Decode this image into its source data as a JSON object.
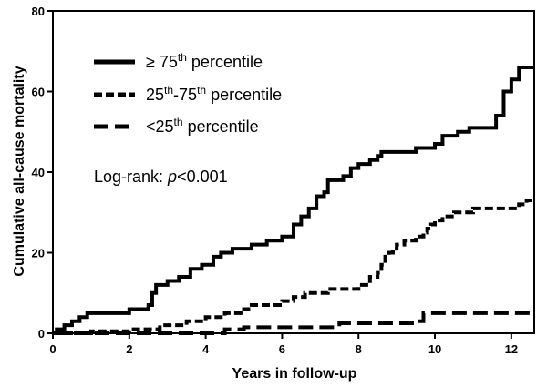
{
  "chart_data": {
    "type": "line",
    "step": true,
    "title": "",
    "xlabel": "Years in follow-up",
    "ylabel": "Cumulative all-cause mortality",
    "xlim": [
      0,
      12.6
    ],
    "ylim": [
      0,
      80
    ],
    "xticks": [
      0,
      2,
      4,
      6,
      8,
      10,
      12
    ],
    "yticks": [
      0,
      20,
      40,
      60,
      80
    ],
    "grid": false,
    "legend_position": "top-left",
    "annotation": {
      "prefix": "Log-rank: ",
      "stat": "p",
      "suffix": "<0.001"
    },
    "series": [
      {
        "name": {
          "main": "≥ 75",
          "sup": "th",
          "rest": " percentile"
        },
        "dash": "solid",
        "x": [
          0,
          0.1,
          0.3,
          0.5,
          0.7,
          0.9,
          2.0,
          2.5,
          2.6,
          2.7,
          3.0,
          3.3,
          3.6,
          3.9,
          4.2,
          4.4,
          4.7,
          5.2,
          5.6,
          6.0,
          6.3,
          6.5,
          6.7,
          6.9,
          7.1,
          7.2,
          7.6,
          7.8,
          8.0,
          8.3,
          8.5,
          8.6,
          9.0,
          9.5,
          10.0,
          10.2,
          10.6,
          10.9,
          11.6,
          11.8,
          12.0,
          12.2,
          12.6
        ],
        "y": [
          0,
          1,
          2,
          3,
          4,
          5,
          6,
          7,
          10,
          12,
          13,
          14,
          16,
          17,
          19,
          20,
          21,
          22,
          23,
          24,
          27,
          29,
          31,
          34,
          35,
          38,
          39,
          41,
          42,
          43,
          44,
          45,
          45,
          46,
          47,
          49,
          50,
          51,
          54,
          60,
          63,
          66,
          66
        ]
      },
      {
        "name": {
          "main": "25",
          "sup": "th",
          "rest": "-75",
          "sup2": "th",
          "rest2": " percentile"
        },
        "dash": "short-dash",
        "x": [
          0,
          1.0,
          1.5,
          2.0,
          2.5,
          2.8,
          3.2,
          3.5,
          3.8,
          4.0,
          4.5,
          4.8,
          5.0,
          5.2,
          5.5,
          6.0,
          6.3,
          6.6,
          6.8,
          7.2,
          7.6,
          8.0,
          8.3,
          8.5,
          8.6,
          8.7,
          8.8,
          8.9,
          9.0,
          9.2,
          9.5,
          9.7,
          9.8,
          9.9,
          10.0,
          10.2,
          10.5,
          11.0,
          12.0,
          12.2,
          12.4,
          12.6
        ],
        "y": [
          0,
          0.5,
          0.5,
          1,
          1,
          2,
          2,
          3,
          3,
          4,
          5,
          5,
          6,
          7,
          7,
          8,
          9,
          10,
          10,
          11,
          11,
          12,
          14,
          15,
          17,
          19,
          20,
          21,
          22,
          23,
          24,
          25,
          26,
          27,
          28,
          29,
          30,
          31,
          31,
          32,
          33,
          33
        ]
      },
      {
        "name": {
          "main": "<25",
          "sup": "th",
          "rest": " percentile"
        },
        "dash": "long-dash",
        "x": [
          0,
          2.5,
          3.0,
          4.5,
          5.0,
          7.5,
          9.5,
          9.7,
          12.6
        ],
        "y": [
          0,
          0,
          0,
          1,
          1.5,
          2.5,
          3,
          5,
          5.5
        ]
      }
    ]
  }
}
